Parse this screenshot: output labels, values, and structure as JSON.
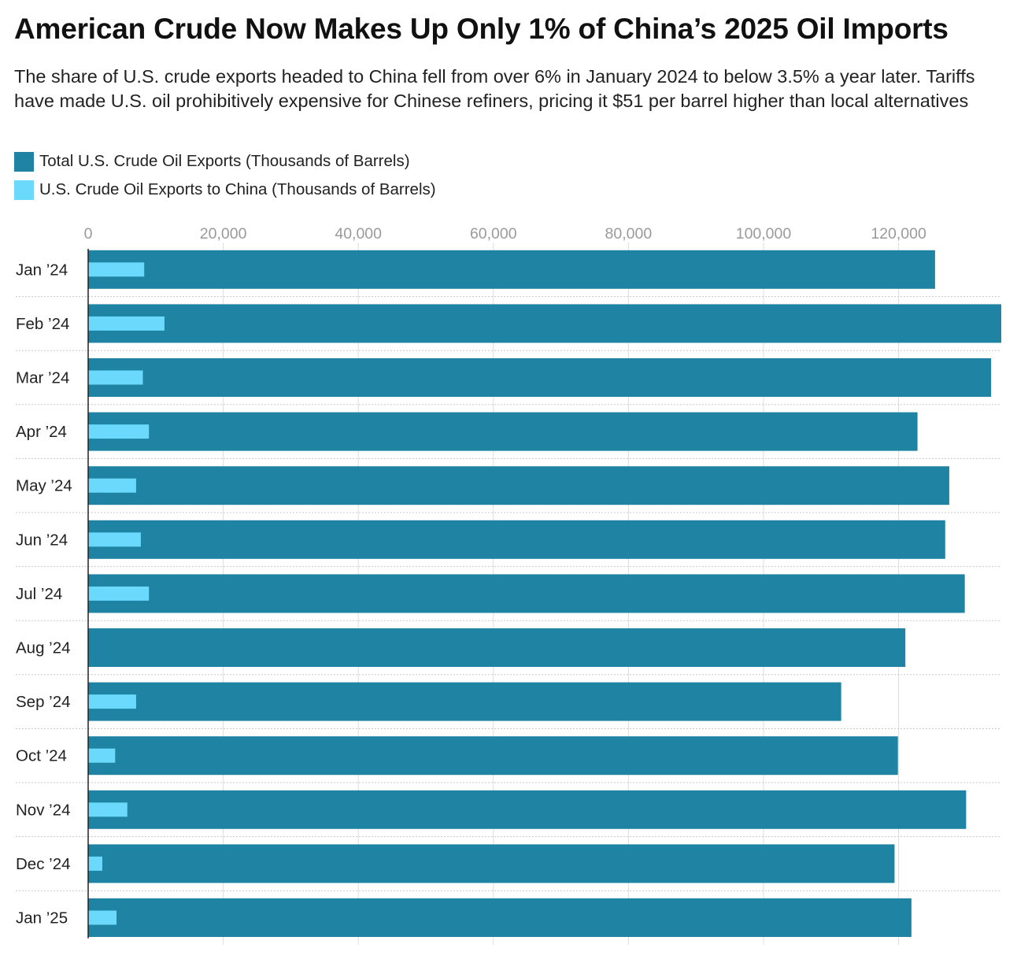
{
  "title": "American Crude Now Makes Up Only 1% of China’s 2025 Oil Imports",
  "subtitle": "The share of U.S. crude exports headed to China fell from over 6% in January 2024 to below 3.5% a year later. Tariffs have made U.S. oil prohibitively expensive for Chinese refiners, pricing it $51 per barrel higher than local alternatives",
  "colors": {
    "total": "#1f83a3",
    "china": "#6ad9fb",
    "grid": "#dddddd",
    "axis": "#222222"
  },
  "chart_data": {
    "type": "bar",
    "orientation": "horizontal",
    "categories": [
      "Jan ’24",
      "Feb ’24",
      "Mar ’24",
      "Apr ’24",
      "May ’24",
      "Jun ’24",
      "Jul ’24",
      "Aug ’24",
      "Sep ’24",
      "Oct ’24",
      "Nov ’24",
      "Dec ’24",
      "Jan ’25"
    ],
    "series": [
      {
        "name": "Total U.S. Crude Oil Exports (Thousands of Barrels)",
        "values": [
          125400,
          135200,
          133700,
          122800,
          127500,
          126900,
          129800,
          121000,
          111500,
          119900,
          130000,
          119400,
          121900
        ]
      },
      {
        "name": "U.S. Crude Oil Exports to China (Thousands of Barrels)",
        "values": [
          8300,
          11300,
          8100,
          9000,
          7100,
          7800,
          9000,
          0,
          7100,
          4000,
          5800,
          2100,
          4200
        ]
      }
    ],
    "xlim": [
      0,
      135200
    ],
    "xticks": [
      0,
      20000,
      40000,
      60000,
      80000,
      100000,
      120000
    ],
    "xtick_labels": [
      "0",
      "20,000",
      "40,000",
      "60,000",
      "80,000",
      "100,000",
      "120,000"
    ],
    "grid": true,
    "legend_position": "top-left"
  }
}
